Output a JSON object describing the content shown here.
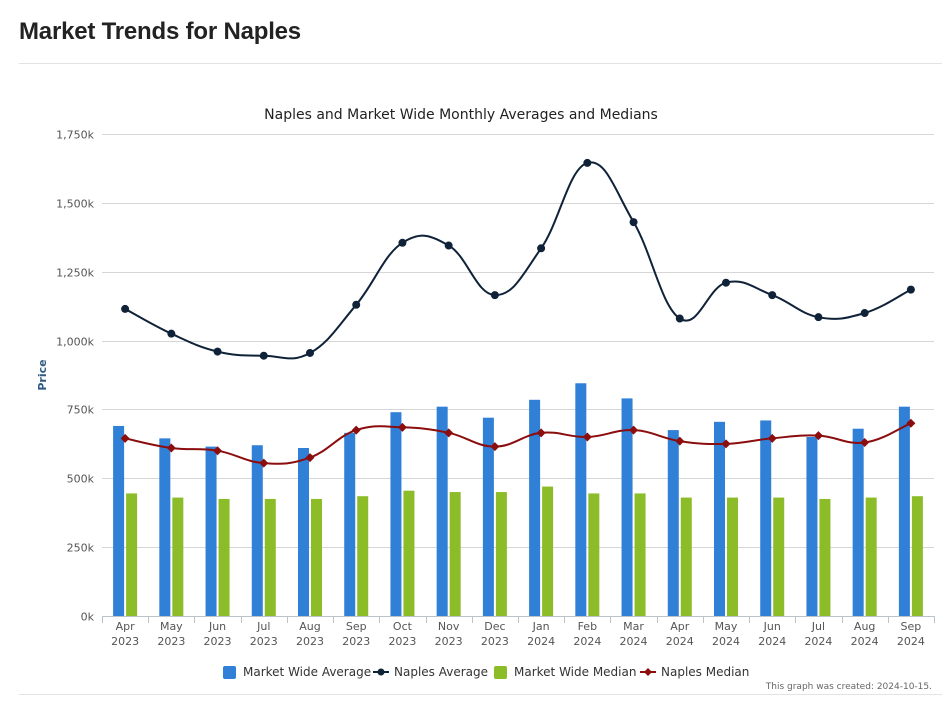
{
  "page": {
    "title": "Market Trends for Naples"
  },
  "chart_data": {
    "type": "bar",
    "title": "Naples and Market Wide Monthly Averages and Medians",
    "ylabel": "Price",
    "xlabel": "",
    "ylim": [
      0,
      1750000
    ],
    "grid": true,
    "yticks": [
      {
        "value": 0,
        "label": "0k"
      },
      {
        "value": 250000,
        "label": "250k"
      },
      {
        "value": 500000,
        "label": "500k"
      },
      {
        "value": 750000,
        "label": "750k"
      },
      {
        "value": 1000000,
        "label": "1,000k"
      },
      {
        "value": 1250000,
        "label": "1,250k"
      },
      {
        "value": 1500000,
        "label": "1,500k"
      },
      {
        "value": 1750000,
        "label": "1,750k"
      }
    ],
    "categories": [
      {
        "month": "Apr",
        "year": "2023"
      },
      {
        "month": "May",
        "year": "2023"
      },
      {
        "month": "Jun",
        "year": "2023"
      },
      {
        "month": "Jul",
        "year": "2023"
      },
      {
        "month": "Aug",
        "year": "2023"
      },
      {
        "month": "Sep",
        "year": "2023"
      },
      {
        "month": "Oct",
        "year": "2023"
      },
      {
        "month": "Nov",
        "year": "2023"
      },
      {
        "month": "Dec",
        "year": "2023"
      },
      {
        "month": "Jan",
        "year": "2024"
      },
      {
        "month": "Feb",
        "year": "2024"
      },
      {
        "month": "Mar",
        "year": "2024"
      },
      {
        "month": "Apr",
        "year": "2024"
      },
      {
        "month": "May",
        "year": "2024"
      },
      {
        "month": "Jun",
        "year": "2024"
      },
      {
        "month": "Jul",
        "year": "2024"
      },
      {
        "month": "Aug",
        "year": "2024"
      },
      {
        "month": "Sep",
        "year": "2024"
      }
    ],
    "series": [
      {
        "name": "Market Wide Average",
        "type": "bar",
        "color": "#2f80d6",
        "values": [
          690000,
          645000,
          615000,
          620000,
          610000,
          665000,
          740000,
          760000,
          720000,
          785000,
          845000,
          790000,
          675000,
          705000,
          710000,
          650000,
          680000,
          760000
        ]
      },
      {
        "name": "Naples Average",
        "type": "line",
        "color": "#0f2238",
        "marker": "circle",
        "values": [
          1115000,
          1025000,
          960000,
          945000,
          955000,
          1130000,
          1355000,
          1345000,
          1165000,
          1335000,
          1645000,
          1430000,
          1080000,
          1210000,
          1165000,
          1085000,
          1100000,
          1185000
        ]
      },
      {
        "name": "Market Wide Median",
        "type": "bar",
        "color": "#8cbc27",
        "values": [
          445000,
          430000,
          425000,
          425000,
          425000,
          435000,
          455000,
          450000,
          450000,
          470000,
          445000,
          445000,
          430000,
          430000,
          430000,
          425000,
          430000,
          435000
        ]
      },
      {
        "name": "Naples Median",
        "type": "line",
        "color": "#8b0d0d",
        "marker": "diamond",
        "values": [
          645000,
          610000,
          600000,
          555000,
          575000,
          675000,
          685000,
          665000,
          615000,
          665000,
          650000,
          675000,
          635000,
          625000,
          645000,
          655000,
          630000,
          700000
        ]
      }
    ],
    "legend_position": "bottom-center",
    "footnote": "This graph was created: 2024-10-15."
  }
}
